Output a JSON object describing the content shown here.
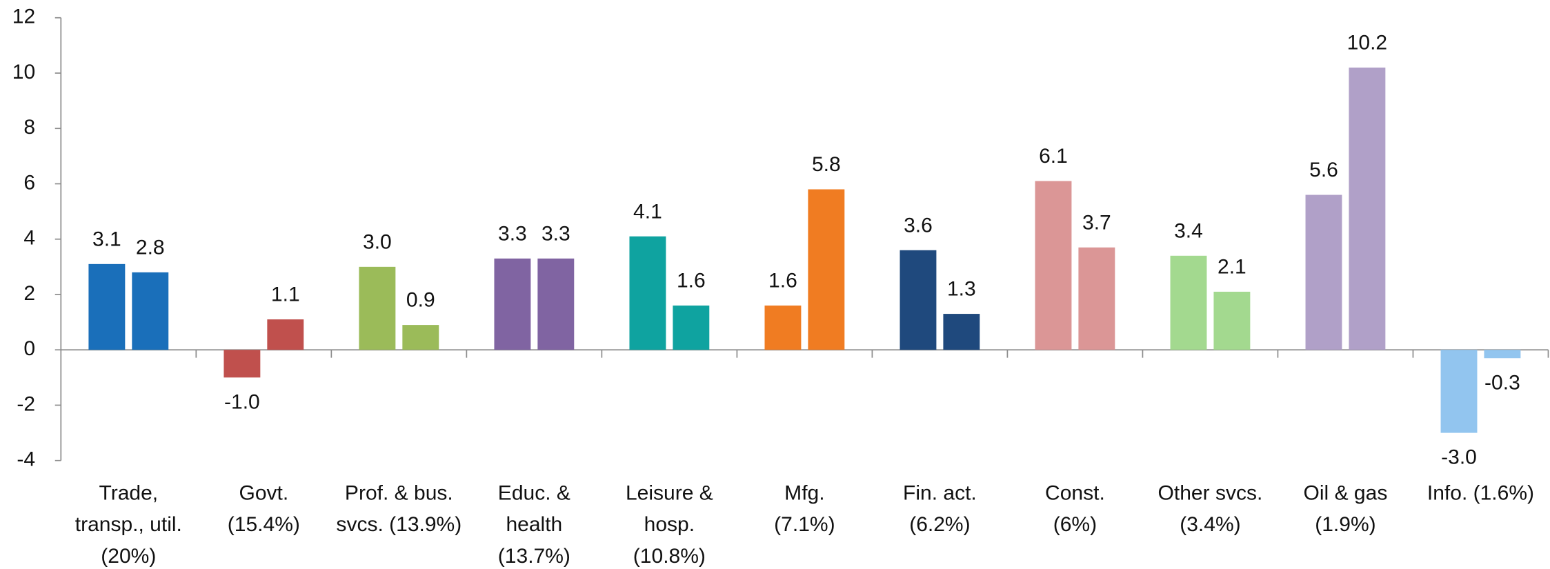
{
  "chart_data": {
    "type": "bar",
    "categories": [
      [
        "Trade,",
        "transp., util.",
        "(20%)"
      ],
      [
        "Govt.",
        "(15.4%)"
      ],
      [
        "Prof. & bus.",
        "svcs. (13.9%)"
      ],
      [
        "Educ. &",
        "health",
        "(13.7%)"
      ],
      [
        "Leisure &",
        "hosp.",
        "(10.8%)"
      ],
      [
        "Mfg.",
        "(7.1%)"
      ],
      [
        "Fin. act.",
        "(6.2%)"
      ],
      [
        "Const.",
        "(6%)"
      ],
      [
        "Other svcs.",
        "(3.4%)"
      ],
      [
        "Oil & gas",
        "(1.9%)"
      ],
      [
        "Info. (1.6%)"
      ]
    ],
    "colors": [
      "#1a6fba",
      "#c0504d",
      "#9bbb59",
      "#8064a2",
      "#0fa3a0",
      "#f07c22",
      "#1f497d",
      "#db9696",
      "#a3d98f",
      "#b0a0c8",
      "#92c5ef"
    ],
    "series": [
      {
        "values": [
          3.1,
          -1.0,
          3.0,
          3.3,
          4.1,
          1.6,
          3.6,
          6.1,
          3.4,
          5.6,
          -3.0
        ],
        "value_labels": [
          "3.1",
          "-1.0",
          "3.0",
          "3.3",
          "4.1",
          "1.6",
          "3.6",
          "6.1",
          "3.4",
          "5.6",
          "-3.0"
        ]
      },
      {
        "values": [
          2.8,
          1.1,
          0.9,
          3.3,
          1.6,
          5.8,
          1.3,
          3.7,
          2.1,
          10.2,
          -0.3
        ],
        "value_labels": [
          "2.8",
          "1.1",
          "0.9",
          "3.3",
          "1.6",
          "5.8",
          "1.3",
          "3.7",
          "2.1",
          "10.2",
          "-0.3"
        ]
      }
    ],
    "ylim": [
      -4,
      12
    ],
    "yticks": [
      -4,
      -2,
      0,
      2,
      4,
      6,
      8,
      10,
      12
    ],
    "grid": false
  }
}
